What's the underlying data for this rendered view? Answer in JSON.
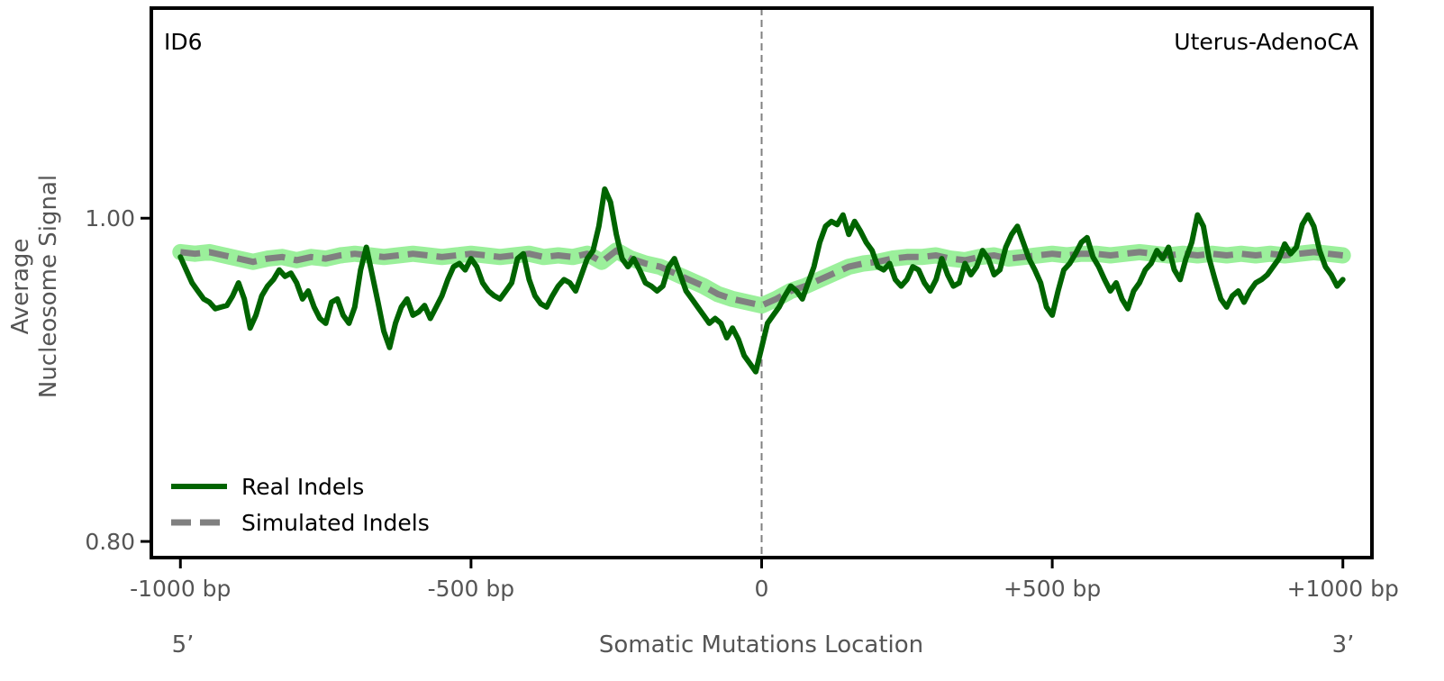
{
  "chart_data": {
    "type": "line",
    "signature_label": "ID6",
    "cancer_type_label": "Uterus-AdenoCA",
    "xlabel": "Somatic Mutations Location",
    "ylabel_line1": "Average",
    "ylabel_line2": "Nucleosome Signal",
    "end_label_5": "5’",
    "end_label_3": "3’",
    "xlim": [
      -1050,
      1050
    ],
    "ylim": [
      0.79,
      1.13
    ],
    "x_ticks": [
      {
        "value": -1000,
        "label": "-1000 bp"
      },
      {
        "value": -500,
        "label": "-500 bp"
      },
      {
        "value": 0,
        "label": "0"
      },
      {
        "value": 500,
        "label": "+500 bp"
      },
      {
        "value": 1000,
        "label": "+1000 bp"
      }
    ],
    "y_ticks": [
      {
        "value": 0.8,
        "label": "0.80"
      },
      {
        "value": 1.0,
        "label": "1.00"
      }
    ],
    "reference_line_x": 0,
    "legend": {
      "placement": "lower-left",
      "entries": [
        {
          "label": "Real Indels",
          "color": "#006400",
          "style": "solid"
        },
        {
          "label": "Simulated Indels",
          "color": "#808080",
          "style": "dashed"
        }
      ]
    },
    "colors": {
      "real": "#006400",
      "simulated": "#808080",
      "simulated_band": "#90ee90"
    },
    "series": [
      {
        "name": "Real Indels",
        "x": [
          -1000,
          -990,
          -980,
          -970,
          -960,
          -950,
          -940,
          -930,
          -920,
          -910,
          -900,
          -890,
          -880,
          -870,
          -860,
          -850,
          -840,
          -830,
          -820,
          -810,
          -800,
          -790,
          -780,
          -770,
          -760,
          -750,
          -740,
          -730,
          -720,
          -710,
          -700,
          -690,
          -680,
          -670,
          -660,
          -650,
          -640,
          -630,
          -620,
          -610,
          -600,
          -590,
          -580,
          -570,
          -560,
          -550,
          -540,
          -530,
          -520,
          -510,
          -500,
          -490,
          -480,
          -470,
          -460,
          -450,
          -440,
          -430,
          -420,
          -410,
          -400,
          -390,
          -380,
          -370,
          -360,
          -350,
          -340,
          -330,
          -320,
          -310,
          -300,
          -290,
          -280,
          -270,
          -260,
          -250,
          -240,
          -230,
          -220,
          -210,
          -200,
          -190,
          -180,
          -170,
          -160,
          -150,
          -140,
          -130,
          -120,
          -110,
          -100,
          -90,
          -80,
          -70,
          -60,
          -50,
          -40,
          -30,
          -20,
          -10,
          0,
          10,
          20,
          30,
          40,
          50,
          60,
          70,
          80,
          90,
          100,
          110,
          120,
          130,
          140,
          150,
          160,
          170,
          180,
          190,
          200,
          210,
          220,
          230,
          240,
          250,
          260,
          270,
          280,
          290,
          300,
          310,
          320,
          330,
          340,
          350,
          360,
          370,
          380,
          390,
          400,
          410,
          420,
          430,
          440,
          450,
          460,
          470,
          480,
          490,
          500,
          510,
          520,
          530,
          540,
          550,
          560,
          570,
          580,
          590,
          600,
          610,
          620,
          630,
          640,
          650,
          660,
          670,
          680,
          690,
          700,
          710,
          720,
          730,
          740,
          750,
          760,
          770,
          780,
          790,
          800,
          810,
          820,
          830,
          840,
          850,
          860,
          870,
          880,
          890,
          900,
          910,
          920,
          930,
          940,
          950,
          960,
          970,
          980,
          990,
          1000
        ],
        "values": [
          0.976,
          0.968,
          0.96,
          0.955,
          0.95,
          0.948,
          0.944,
          0.945,
          0.946,
          0.952,
          0.96,
          0.95,
          0.932,
          0.94,
          0.952,
          0.958,
          0.962,
          0.968,
          0.964,
          0.966,
          0.96,
          0.95,
          0.955,
          0.945,
          0.938,
          0.935,
          0.948,
          0.95,
          0.94,
          0.935,
          0.945,
          0.968,
          0.982,
          0.965,
          0.948,
          0.93,
          0.92,
          0.935,
          0.945,
          0.95,
          0.94,
          0.942,
          0.946,
          0.938,
          0.945,
          0.952,
          0.962,
          0.97,
          0.972,
          0.968,
          0.975,
          0.97,
          0.96,
          0.955,
          0.952,
          0.95,
          0.955,
          0.96,
          0.975,
          0.978,
          0.962,
          0.952,
          0.947,
          0.945,
          0.952,
          0.958,
          0.962,
          0.96,
          0.955,
          0.965,
          0.975,
          0.98,
          0.995,
          1.018,
          1.01,
          0.99,
          0.975,
          0.97,
          0.975,
          0.968,
          0.96,
          0.958,
          0.955,
          0.958,
          0.97,
          0.975,
          0.965,
          0.955,
          0.95,
          0.945,
          0.94,
          0.935,
          0.938,
          0.935,
          0.926,
          0.932,
          0.925,
          0.915,
          0.91,
          0.905,
          0.92,
          0.935,
          0.94,
          0.945,
          0.952,
          0.958,
          0.955,
          0.95,
          0.96,
          0.97,
          0.985,
          0.995,
          0.998,
          0.996,
          1.002,
          0.99,
          0.998,
          0.992,
          0.985,
          0.98,
          0.97,
          0.968,
          0.972,
          0.962,
          0.958,
          0.962,
          0.97,
          0.968,
          0.96,
          0.955,
          0.962,
          0.975,
          0.965,
          0.958,
          0.96,
          0.972,
          0.965,
          0.97,
          0.98,
          0.975,
          0.965,
          0.968,
          0.982,
          0.99,
          0.995,
          0.985,
          0.975,
          0.968,
          0.96,
          0.945,
          0.94,
          0.955,
          0.968,
          0.972,
          0.978,
          0.985,
          0.988,
          0.976,
          0.97,
          0.962,
          0.955,
          0.96,
          0.95,
          0.944,
          0.955,
          0.96,
          0.968,
          0.972,
          0.98,
          0.975,
          0.982,
          0.968,
          0.962,
          0.975,
          0.985,
          1.002,
          0.995,
          0.975,
          0.962,
          0.95,
          0.945,
          0.952,
          0.955,
          0.948,
          0.955,
          0.96,
          0.962,
          0.965,
          0.97,
          0.975,
          0.984,
          0.978,
          0.982,
          0.996,
          1.002,
          0.995,
          0.98,
          0.97,
          0.965,
          0.958,
          0.962
        ]
      },
      {
        "name": "Simulated Indels",
        "x": [
          -1000,
          -975,
          -950,
          -925,
          -900,
          -875,
          -850,
          -825,
          -800,
          -775,
          -750,
          -725,
          -700,
          -675,
          -650,
          -625,
          -600,
          -575,
          -550,
          -525,
          -500,
          -475,
          -450,
          -425,
          -400,
          -375,
          -350,
          -325,
          -300,
          -275,
          -250,
          -225,
          -200,
          -175,
          -150,
          -125,
          -100,
          -75,
          -50,
          -25,
          0,
          25,
          50,
          75,
          100,
          125,
          150,
          175,
          200,
          225,
          250,
          275,
          300,
          325,
          350,
          375,
          400,
          425,
          450,
          475,
          500,
          525,
          550,
          575,
          600,
          625,
          650,
          675,
          700,
          725,
          750,
          775,
          800,
          825,
          850,
          875,
          900,
          925,
          950,
          975,
          1000
        ],
        "values": [
          0.979,
          0.978,
          0.979,
          0.977,
          0.975,
          0.973,
          0.975,
          0.976,
          0.974,
          0.976,
          0.975,
          0.977,
          0.978,
          0.977,
          0.976,
          0.977,
          0.978,
          0.977,
          0.976,
          0.977,
          0.978,
          0.977,
          0.976,
          0.977,
          0.978,
          0.976,
          0.977,
          0.976,
          0.978,
          0.973,
          0.98,
          0.975,
          0.972,
          0.97,
          0.966,
          0.962,
          0.958,
          0.953,
          0.95,
          0.948,
          0.946,
          0.95,
          0.955,
          0.958,
          0.962,
          0.966,
          0.97,
          0.972,
          0.973,
          0.975,
          0.976,
          0.976,
          0.977,
          0.975,
          0.974,
          0.976,
          0.977,
          0.975,
          0.976,
          0.977,
          0.978,
          0.977,
          0.978,
          0.978,
          0.977,
          0.978,
          0.979,
          0.978,
          0.977,
          0.978,
          0.977,
          0.978,
          0.977,
          0.978,
          0.977,
          0.978,
          0.977,
          0.978,
          0.979,
          0.978,
          0.977
        ]
      }
    ]
  }
}
